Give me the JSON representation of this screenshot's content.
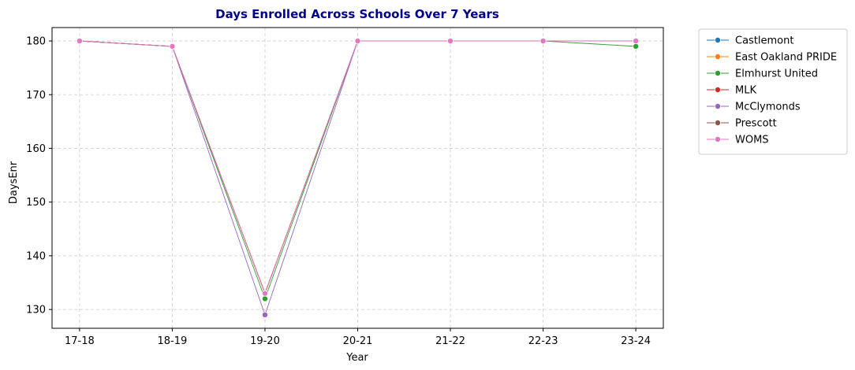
{
  "chart_data": {
    "type": "line",
    "title": "Days Enrolled Across Schools Over 7 Years",
    "title_color": "#00008b",
    "xlabel": "Year",
    "ylabel": "DaysEnr",
    "categories": [
      "17-18",
      "18-19",
      "19-20",
      "20-21",
      "21-22",
      "22-23",
      "23-24"
    ],
    "yticks": [
      130,
      140,
      150,
      160,
      170,
      180
    ],
    "ylim": [
      126.5,
      182.5
    ],
    "grid": true,
    "legend_position": "outside-top-right",
    "series": [
      {
        "name": "Castlemont",
        "color": "#1f77b4",
        "values": [
          180,
          179,
          133,
          180,
          180,
          180,
          180
        ]
      },
      {
        "name": "East Oakland PRIDE",
        "color": "#ff7f0e",
        "values": [
          180,
          179,
          133,
          180,
          180,
          180,
          180
        ]
      },
      {
        "name": "Elmhurst United",
        "color": "#2ca02c",
        "values": [
          180,
          179,
          132,
          180,
          180,
          180,
          179
        ]
      },
      {
        "name": "MLK",
        "color": "#d62728",
        "values": [
          180,
          179,
          133,
          180,
          180,
          180,
          180
        ]
      },
      {
        "name": "McClymonds",
        "color": "#9467bd",
        "values": [
          180,
          179,
          129,
          180,
          180,
          180,
          180
        ]
      },
      {
        "name": "Prescott",
        "color": "#8c564b",
        "values": [
          180,
          179,
          133,
          180,
          180,
          180,
          180
        ]
      },
      {
        "name": "WOMS",
        "color": "#e377c2",
        "values": [
          180,
          179,
          133,
          180,
          180,
          180,
          180
        ]
      }
    ]
  }
}
